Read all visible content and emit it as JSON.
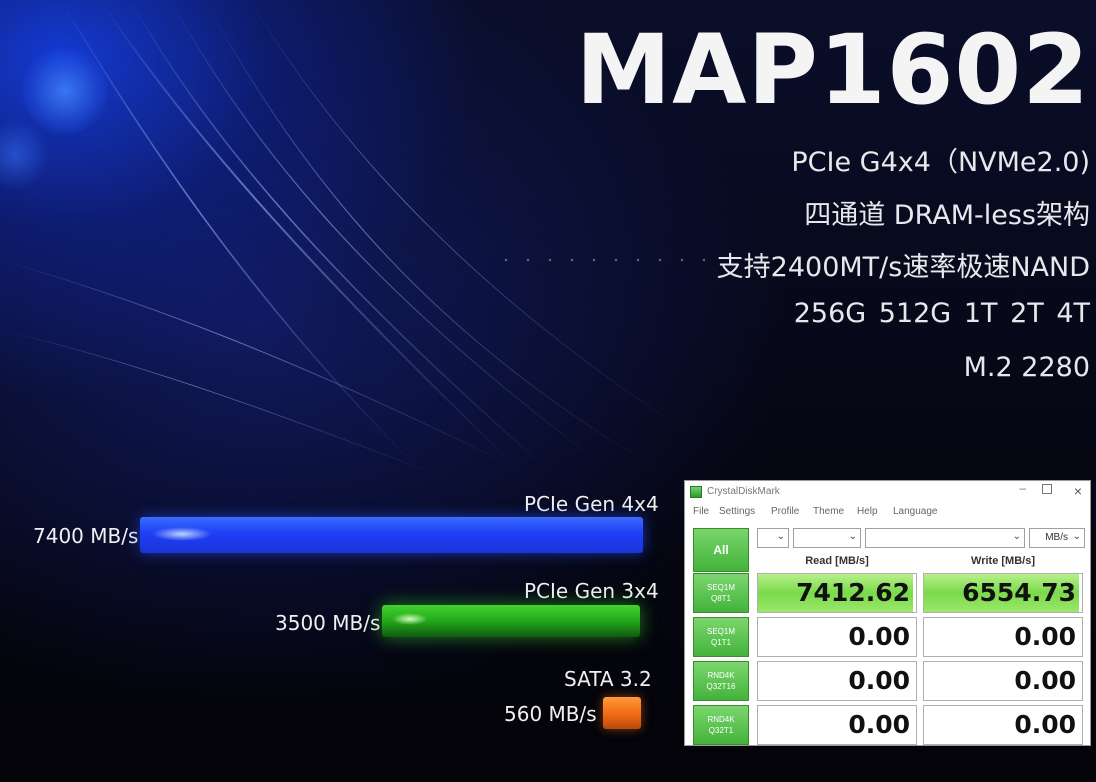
{
  "hero": {
    "title": "MAP1602",
    "specs": [
      "PCIe G4x4（NVMe2.0)",
      "四通道 DRAM-less架构",
      "支持2400MT/s速率极速NAND",
      "256G  512G  1T  2T  4T",
      "M.2 2280"
    ]
  },
  "comparison": {
    "bars": [
      {
        "label": "PCIe Gen 4x4",
        "speed": "7400 MB/s",
        "color": "#1f3ff5"
      },
      {
        "label": "PCIe Gen 3x4",
        "speed": "3500 MB/s",
        "color": "#24a81a"
      },
      {
        "label": "SATA 3.2",
        "speed": "560 MB/s",
        "color": "#f06a12"
      }
    ]
  },
  "cdm": {
    "window_title": "CrystalDiskMark",
    "menu": [
      "File",
      "Settings",
      "Profile",
      "Theme",
      "Help",
      "Language"
    ],
    "all_button": "All",
    "unit_select": "MB/s",
    "read_header": "Read [MB/s]",
    "write_header": "Write [MB/s]",
    "rows": [
      {
        "line1": "SEQ1M",
        "line2": "Q8T1",
        "read": "7412.62",
        "write": "6554.73",
        "read_fill": 0.98,
        "write_fill": 0.98
      },
      {
        "line1": "SEQ1M",
        "line2": "Q1T1",
        "read": "0.00",
        "write": "0.00",
        "read_fill": 0,
        "write_fill": 0
      },
      {
        "line1": "RND4K",
        "line2": "Q32T16",
        "read": "0.00",
        "write": "0.00",
        "read_fill": 0,
        "write_fill": 0
      },
      {
        "line1": "RND4K",
        "line2": "Q32T1",
        "read": "0.00",
        "write": "0.00",
        "read_fill": 0,
        "write_fill": 0
      }
    ],
    "accent": "#43b33b"
  }
}
